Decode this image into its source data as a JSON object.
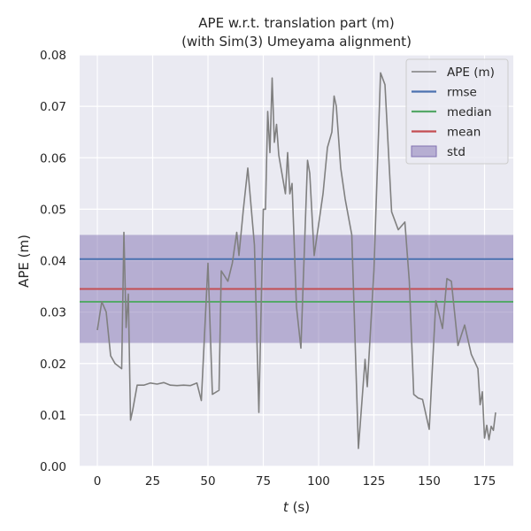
{
  "chart_data": {
    "type": "line",
    "title": "APE w.r.t. translation part (m)",
    "subtitle": "(with Sim(3) Umeyama alignment)",
    "xlabel_var": "t",
    "xlabel_unit": " (s)",
    "ylabel": "APE (m)",
    "xlim": [
      -8,
      188
    ],
    "ylim": [
      0,
      0.08
    ],
    "xticks": [
      0,
      25,
      50,
      75,
      100,
      125,
      150,
      175
    ],
    "yticks": [
      0.0,
      0.01,
      0.02,
      0.03,
      0.04,
      0.05,
      0.06,
      0.07,
      0.08
    ],
    "ytick_labels": [
      "0.00",
      "0.01",
      "0.02",
      "0.03",
      "0.04",
      "0.05",
      "0.06",
      "0.07",
      "0.08"
    ],
    "grid": true,
    "legend_position": "top-right",
    "colors": {
      "background": "#eaeaf2",
      "grid": "#ffffff",
      "ape": "#808080",
      "rmse": "#4c72b0",
      "median": "#55a868",
      "mean": "#c44e52",
      "std": "#8172b2"
    },
    "legend": [
      {
        "key": "ape",
        "label": "APE (m)",
        "kind": "line"
      },
      {
        "key": "rmse",
        "label": "rmse",
        "kind": "line"
      },
      {
        "key": "median",
        "label": "median",
        "kind": "line"
      },
      {
        "key": "mean",
        "label": "mean",
        "kind": "line"
      },
      {
        "key": "std",
        "label": "std",
        "kind": "patch"
      }
    ],
    "stats": {
      "rmse": 0.0403,
      "median": 0.032,
      "mean": 0.0345,
      "std_band": [
        0.024,
        0.045
      ]
    },
    "series": [
      {
        "name": "APE (m)",
        "x": [
          0,
          2,
          4,
          6,
          8,
          11,
          12,
          13,
          14,
          15,
          16,
          18,
          21,
          24,
          27,
          30,
          33,
          36,
          39,
          42,
          45,
          47,
          50,
          52,
          55,
          56,
          59,
          61,
          63,
          64,
          66,
          68,
          71,
          73,
          75,
          76,
          77,
          78,
          79,
          80,
          81,
          82,
          85,
          86,
          87,
          88,
          90,
          92,
          95,
          96,
          98,
          100,
          102,
          104,
          106,
          107,
          108,
          110,
          112,
          115,
          118,
          121,
          122,
          125,
          128,
          130,
          133,
          136,
          139,
          141,
          143,
          145,
          147,
          150,
          153,
          156,
          158,
          160,
          163,
          166,
          169,
          172,
          173,
          174,
          175,
          176,
          177,
          178,
          179,
          180
        ],
        "y": [
          0.0265,
          0.032,
          0.03,
          0.0215,
          0.02,
          0.019,
          0.0455,
          0.027,
          0.0335,
          0.009,
          0.011,
          0.0158,
          0.0158,
          0.0162,
          0.016,
          0.0163,
          0.0158,
          0.0157,
          0.0158,
          0.0157,
          0.0162,
          0.0128,
          0.0395,
          0.014,
          0.0148,
          0.038,
          0.036,
          0.0395,
          0.0455,
          0.041,
          0.05,
          0.058,
          0.043,
          0.0105,
          0.05,
          0.05,
          0.069,
          0.061,
          0.0755,
          0.063,
          0.0665,
          0.0605,
          0.053,
          0.061,
          0.053,
          0.055,
          0.031,
          0.023,
          0.0595,
          0.057,
          0.041,
          0.047,
          0.053,
          0.062,
          0.065,
          0.072,
          0.07,
          0.058,
          0.052,
          0.045,
          0.0035,
          0.0208,
          0.0155,
          0.038,
          0.0765,
          0.0742,
          0.0495,
          0.046,
          0.0475,
          0.036,
          0.014,
          0.0133,
          0.013,
          0.0072,
          0.0322,
          0.0268,
          0.0365,
          0.036,
          0.0235,
          0.0275,
          0.0218,
          0.019,
          0.012,
          0.0145,
          0.0055,
          0.008,
          0.0052,
          0.0078,
          0.007,
          0.0105
        ]
      }
    ]
  }
}
